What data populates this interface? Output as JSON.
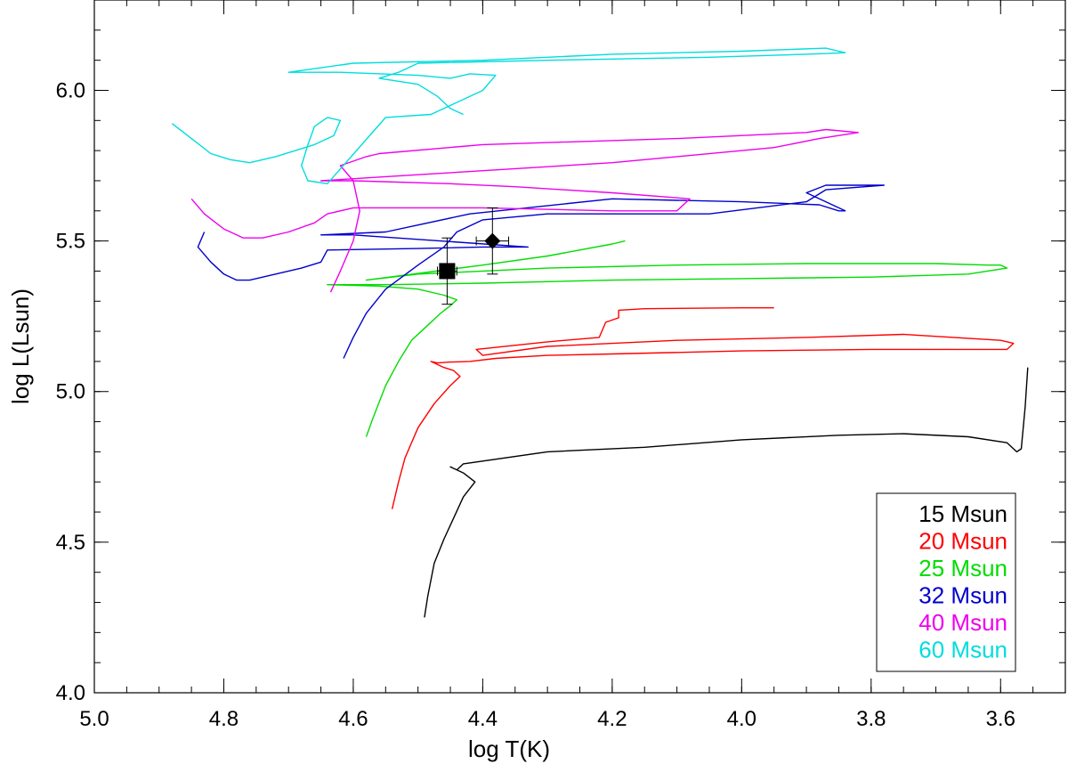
{
  "chart_data": {
    "type": "line",
    "title": "",
    "xlabel": "log T(K)",
    "ylabel": "log L(Lsun)",
    "xlim": [
      5.0,
      3.5
    ],
    "ylim": [
      4.0,
      6.3
    ],
    "x_ticks": [
      5.0,
      4.8,
      4.6,
      4.4,
      4.2,
      4.0,
      3.8,
      3.6
    ],
    "x_tick_labels": [
      "5.0",
      "4.8",
      "4.6",
      "4.4",
      "4.2",
      "4.0",
      "3.8",
      "3.6"
    ],
    "y_ticks": [
      4.0,
      4.5,
      5.0,
      5.5,
      6.0
    ],
    "y_tick_labels": [
      "4.0",
      "4.5",
      "5.0",
      "5.5",
      "6.0"
    ],
    "x_minor_step": 0.05,
    "y_minor_step": 0.1,
    "legend_position": "bottom-right",
    "series": [
      {
        "name": "15 Msun",
        "color": "#000000",
        "x": [
          4.49,
          4.485,
          4.475,
          4.46,
          4.445,
          4.43,
          4.412,
          4.43,
          4.45,
          4.44,
          4.43,
          4.3,
          4.15,
          4.0,
          3.85,
          3.75,
          3.65,
          3.59,
          3.575,
          3.568,
          3.562,
          3.558
        ],
        "y": [
          4.25,
          4.32,
          4.43,
          4.51,
          4.58,
          4.65,
          4.7,
          4.73,
          4.75,
          4.74,
          4.76,
          4.8,
          4.815,
          4.84,
          4.855,
          4.86,
          4.85,
          4.83,
          4.8,
          4.81,
          4.95,
          5.08
        ]
      },
      {
        "name": "20 Msun",
        "color": "#ff0000",
        "x": [
          4.54,
          4.53,
          4.52,
          4.5,
          4.475,
          4.45,
          4.435,
          4.445,
          4.46,
          4.48,
          4.47,
          4.45,
          4.42,
          4.38,
          4.3,
          4.2,
          4.0,
          3.8,
          3.65,
          3.59,
          3.58,
          3.6,
          3.75,
          3.9,
          4.1,
          4.3,
          4.4,
          4.41,
          4.3,
          4.22,
          4.21,
          4.19,
          4.19,
          4.15,
          4.0,
          3.95
        ],
        "y": [
          4.61,
          4.7,
          4.78,
          4.88,
          4.96,
          5.02,
          5.05,
          5.07,
          5.08,
          5.1,
          5.095,
          5.098,
          5.1,
          5.11,
          5.12,
          5.125,
          5.135,
          5.14,
          5.14,
          5.14,
          5.16,
          5.17,
          5.19,
          5.18,
          5.17,
          5.15,
          5.12,
          5.14,
          5.165,
          5.18,
          5.23,
          5.245,
          5.27,
          5.275,
          5.278,
          5.278
        ]
      },
      {
        "name": "25 Msun",
        "color": "#00dd00",
        "x": [
          4.58,
          4.57,
          4.55,
          4.53,
          4.51,
          4.485,
          4.465,
          4.45,
          4.44,
          4.46,
          4.5,
          4.56,
          4.64,
          4.55,
          4.4,
          4.2,
          4.0,
          3.8,
          3.65,
          3.59,
          3.6,
          3.62,
          3.7,
          3.9,
          4.1,
          4.3,
          4.5,
          4.58,
          4.4,
          4.3,
          4.2,
          4.18
        ],
        "y": [
          4.85,
          4.91,
          5.02,
          5.1,
          5.17,
          5.22,
          5.26,
          5.285,
          5.305,
          5.32,
          5.34,
          5.35,
          5.355,
          5.355,
          5.36,
          5.37,
          5.375,
          5.38,
          5.39,
          5.41,
          5.42,
          5.42,
          5.425,
          5.425,
          5.42,
          5.41,
          5.39,
          5.37,
          5.42,
          5.45,
          5.49,
          5.5
        ]
      },
      {
        "name": "32 Msun",
        "color": "#0000cc",
        "x": [
          4.83,
          4.84,
          4.82,
          4.8,
          4.78,
          4.76,
          4.72,
          4.68,
          4.65,
          4.64,
          4.5,
          4.4,
          4.33,
          4.6,
          4.65,
          4.55,
          4.42,
          4.2,
          4.0,
          3.88,
          3.85,
          3.84,
          3.9,
          3.87,
          3.78,
          3.87,
          3.9,
          4.05,
          4.3,
          4.4,
          4.44,
          4.46,
          4.5,
          4.55,
          4.58,
          4.6,
          4.615
        ],
        "y": [
          5.53,
          5.48,
          5.43,
          5.39,
          5.37,
          5.37,
          5.39,
          5.41,
          5.43,
          5.47,
          5.475,
          5.48,
          5.48,
          5.52,
          5.52,
          5.53,
          5.59,
          5.64,
          5.63,
          5.62,
          5.6,
          5.6,
          5.66,
          5.685,
          5.685,
          5.67,
          5.63,
          5.59,
          5.59,
          5.57,
          5.53,
          5.48,
          5.42,
          5.34,
          5.26,
          5.18,
          5.11
        ]
      },
      {
        "name": "40 Msun",
        "color": "#ee00ee",
        "x": [
          4.85,
          4.83,
          4.8,
          4.77,
          4.74,
          4.7,
          4.66,
          4.64,
          4.6,
          4.4,
          4.2,
          4.1,
          4.08,
          4.2,
          4.35,
          4.45,
          4.6,
          4.65,
          4.5,
          4.2,
          3.95,
          3.88,
          3.82,
          3.87,
          3.9,
          4.1,
          4.4,
          4.56,
          4.58,
          4.62,
          4.6,
          4.59,
          4.6,
          4.62,
          4.635
        ],
        "y": [
          5.64,
          5.59,
          5.54,
          5.51,
          5.51,
          5.53,
          5.56,
          5.59,
          5.61,
          5.61,
          5.6,
          5.6,
          5.64,
          5.66,
          5.68,
          5.69,
          5.7,
          5.7,
          5.72,
          5.76,
          5.81,
          5.84,
          5.86,
          5.87,
          5.86,
          5.84,
          5.82,
          5.79,
          5.78,
          5.75,
          5.7,
          5.6,
          5.5,
          5.4,
          5.33
        ]
      },
      {
        "name": "60 Msun",
        "color": "#00dddd",
        "x": [
          4.88,
          4.85,
          4.82,
          4.79,
          4.76,
          4.72,
          4.66,
          4.63,
          4.62,
          4.64,
          4.66,
          4.67,
          4.68,
          4.67,
          4.64,
          4.55,
          4.48,
          4.46,
          4.4,
          4.38,
          4.42,
          4.45,
          4.5,
          4.62,
          4.7,
          4.6,
          4.4,
          4.2,
          4.0,
          3.87,
          3.85,
          3.84,
          3.9,
          4.05,
          4.3,
          4.5,
          4.53,
          4.56,
          4.5,
          4.47,
          4.45,
          4.43
        ],
        "y": [
          5.89,
          5.84,
          5.79,
          5.77,
          5.76,
          5.78,
          5.82,
          5.85,
          5.9,
          5.91,
          5.88,
          5.82,
          5.75,
          5.7,
          5.69,
          5.91,
          5.92,
          5.94,
          6.0,
          6.05,
          6.055,
          6.04,
          6.05,
          6.06,
          6.06,
          6.09,
          6.1,
          6.12,
          6.13,
          6.14,
          6.13,
          6.125,
          6.12,
          6.11,
          6.1,
          6.09,
          6.06,
          6.04,
          6.02,
          5.98,
          5.94,
          5.92
        ]
      }
    ],
    "points": [
      {
        "name": "square",
        "marker": "square",
        "x": 4.455,
        "y": 5.4,
        "yerr_low": 5.29,
        "yerr_high": 5.51,
        "xerr_low": 4.44,
        "xerr_high": 4.47
      },
      {
        "name": "diamond",
        "marker": "diamond",
        "x": 4.385,
        "y": 5.5,
        "yerr_low": 5.39,
        "yerr_high": 5.61,
        "xerr_low": 4.36,
        "xerr_high": 4.41
      }
    ]
  }
}
